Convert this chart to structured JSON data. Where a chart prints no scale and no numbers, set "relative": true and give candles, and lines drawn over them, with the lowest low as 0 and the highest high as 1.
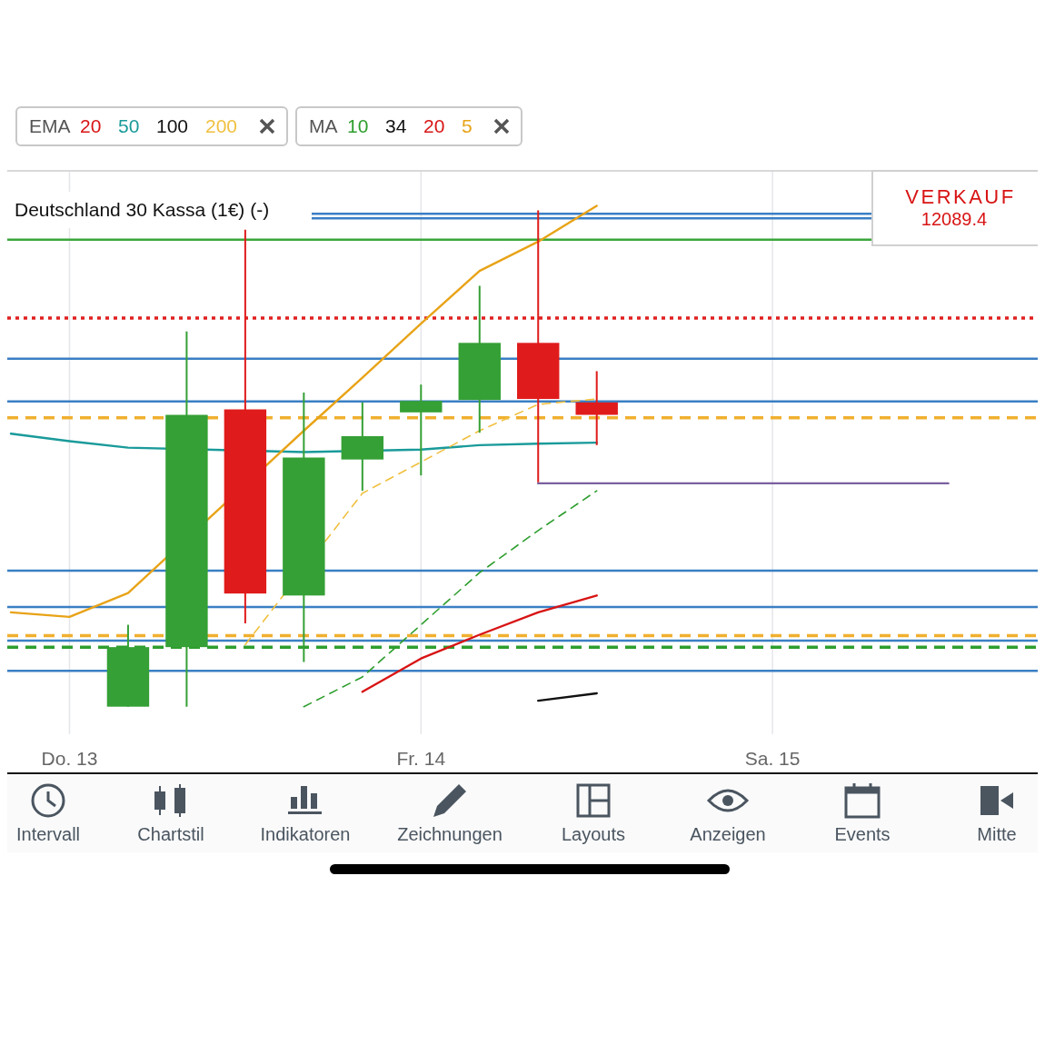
{
  "chart_data": {
    "type": "candlestick",
    "title": "Deutschland 30 Kassa (1€) (-)",
    "relative": true,
    "categories": [
      null,
      "Do. 13",
      null,
      null,
      null,
      null,
      null,
      "Fr. 14",
      null,
      null,
      null,
      null,
      null,
      "Sa. 15",
      null,
      null,
      null,
      null
    ],
    "ohlc": [
      null,
      null,
      [
        0,
        0.165,
        0,
        0.12
      ],
      [
        0.12,
        0.756,
        0,
        0.588
      ],
      [
        0.599,
        0.961,
        0.168,
        0.228
      ],
      [
        0.224,
        0.633,
        0.09,
        0.502
      ],
      [
        0.498,
        0.613,
        0.435,
        0.545
      ],
      [
        0.593,
        0.649,
        0.466,
        0.616
      ],
      [
        0.618,
        0.848,
        0.552,
        0.733
      ],
      [
        0.733,
        1,
        0.452,
        0.62
      ],
      [
        0.613,
        0.676,
        0.527,
        0.588
      ],
      null,
      null,
      null,
      null,
      null,
      null,
      null
    ],
    "colors": [
      null,
      null,
      "#35a035",
      "#35a035",
      "#e01b1b",
      "#35a035",
      "#35a035",
      "#35a035",
      "#35a035",
      "#e01b1b",
      "#e01b1b",
      null,
      null,
      null,
      null,
      null,
      null,
      null
    ],
    "series": [
      {
        "type": "line",
        "name": "20",
        "color": "#d81414",
        "values": [
          null,
          null,
          null,
          null,
          null,
          null,
          0.03,
          0.097,
          0.145,
          0.19,
          0.224,
          null,
          null,
          null,
          null,
          null,
          null,
          null
        ]
      },
      {
        "type": "line",
        "name": "50",
        "color": "#1a9a9a",
        "values": [
          0.55,
          0.535,
          0.522,
          null,
          null,
          0.513,
          null,
          0.518,
          0.527,
          0.53,
          0.532,
          null,
          null,
          null,
          null,
          null,
          null,
          null
        ]
      },
      {
        "type": "line",
        "name": "100",
        "color": "#111111",
        "values": [
          null,
          null,
          null,
          null,
          null,
          null,
          null,
          null,
          null,
          0.012,
          0.027,
          null,
          null,
          null,
          null,
          null,
          null,
          null
        ]
      },
      {
        "type": "line",
        "name": "200",
        "color": "#f0c040",
        "line_style": "dashed",
        "values": [
          null,
          null,
          null,
          null,
          0.125,
          null,
          0.43,
          0.493,
          0.556,
          0.609,
          0.62,
          null,
          null,
          null,
          null,
          null,
          null,
          null
        ]
      },
      {
        "type": "line",
        "name": "10",
        "color": "#2e9e2e",
        "line_style": "dashed",
        "values": [
          null,
          null,
          null,
          null,
          null,
          0,
          0.06,
          0.165,
          0.27,
          0.355,
          0.435,
          null,
          null,
          null,
          null,
          null,
          null,
          null
        ]
      },
      {
        "type": "line",
        "name": "34",
        "color": "#111111",
        "values": [
          null,
          null,
          null,
          null,
          null,
          null,
          null,
          null,
          null,
          null,
          null,
          null,
          null,
          null,
          null,
          null,
          null,
          null
        ]
      },
      {
        "type": "line",
        "name": "20",
        "color": "#d81414",
        "values": [
          null,
          null,
          null,
          null,
          null,
          null,
          null,
          null,
          null,
          null,
          null,
          null,
          null,
          null,
          null,
          null,
          null,
          null
        ]
      },
      {
        "type": "line",
        "name": "5",
        "color": "#e8a317",
        "values": [
          0.19,
          0.181,
          0.229,
          null,
          null,
          0.556,
          0.663,
          0.772,
          0.878,
          0.937,
          1.009,
          null,
          null,
          null,
          null,
          null,
          null,
          null
        ]
      },
      {
        "type": "line",
        "color": "#7a5fa0",
        "values": [
          null,
          null,
          null,
          null,
          null,
          null,
          null,
          null,
          null,
          0.45,
          0.45,
          0.45,
          0.45,
          0.45,
          0.45,
          0.45,
          0.45,
          null
        ]
      }
    ],
    "ref_lines": [
      {
        "axis": "y",
        "value": 0.993,
        "color": "#3a7fc4"
      },
      {
        "axis": "y",
        "value": 0.984,
        "color": "#3a7fc4"
      },
      {
        "axis": "y",
        "value": 0.941,
        "color": "#3aa63a"
      },
      {
        "axis": "y",
        "value": 0.783,
        "color": "#e02020",
        "line_style": "dotted"
      },
      {
        "axis": "y",
        "value": 0.701,
        "color": "#3a7fc4"
      },
      {
        "axis": "y",
        "value": 0.615,
        "color": "#3a7fc4"
      },
      {
        "axis": "y",
        "value": 0.582,
        "color": "#f0b030",
        "line_style": "dashed"
      },
      {
        "axis": "y",
        "value": 0.274,
        "color": "#3a7fc4"
      },
      {
        "axis": "y",
        "value": 0.201,
        "color": "#3a7fc4"
      },
      {
        "axis": "y",
        "value": 0.143,
        "color": "#f0b030",
        "line_style": "dashed"
      },
      {
        "axis": "y",
        "value": 0.133,
        "color": "#3a7fc4"
      },
      {
        "axis": "y",
        "value": 0.12,
        "color": "#2e9e2e",
        "line_style": "dashed"
      },
      {
        "axis": "y",
        "value": 0.072,
        "color": "#3a7fc4"
      }
    ],
    "grid": "x",
    "legend": "top left",
    "tick_labels": "x",
    "annotations": [
      "EMA",
      "MA",
      "VERKAUF",
      "12089.4",
      "Intervall",
      "Chartstil",
      "Indikatoren",
      "Zeichnungen",
      "Layouts",
      "Anzeigen",
      "Events",
      "Mitte"
    ]
  }
}
